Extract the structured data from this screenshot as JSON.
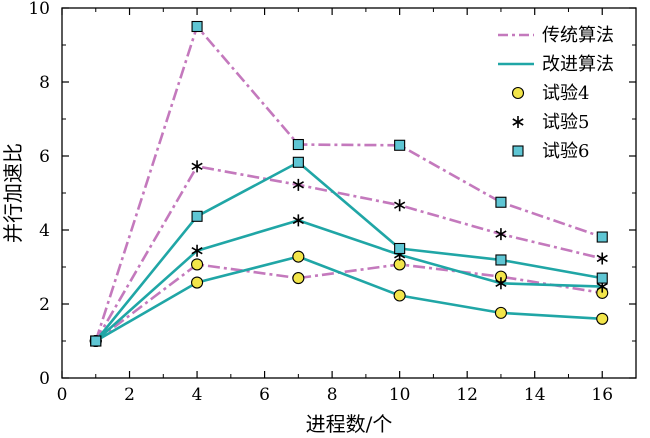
{
  "chart_data": {
    "type": "line",
    "xlabel": "进程数/个",
    "ylabel": "并行加速比",
    "xlim": [
      0,
      17
    ],
    "ylim": [
      0,
      10
    ],
    "xticks": [
      0,
      2,
      4,
      6,
      8,
      10,
      12,
      14,
      16
    ],
    "yticks": [
      0,
      2,
      4,
      6,
      8,
      10
    ],
    "legend_position": "top-right",
    "colors": {
      "traditional": "#c479bd",
      "improved": "#20a6a6",
      "marker_test4": "#f2e54a",
      "marker_test6": "#5fc6d4"
    },
    "x": [
      1,
      4,
      7,
      10,
      13,
      16
    ],
    "series": [
      {
        "name": "试验4",
        "method": "传统算法",
        "values": [
          1,
          3.07,
          2.7,
          3.07,
          2.74,
          2.3
        ],
        "marker": "circle"
      },
      {
        "name": "试验5",
        "method": "传统算法",
        "values": [
          1,
          5.72,
          5.22,
          4.67,
          3.89,
          3.23
        ],
        "marker": "star"
      },
      {
        "name": "试验6",
        "method": "传统算法",
        "values": [
          1,
          9.5,
          6.31,
          6.29,
          4.75,
          3.81
        ],
        "marker": "square"
      },
      {
        "name": "试验4",
        "method": "改进算法",
        "values": [
          1,
          2.58,
          3.28,
          2.23,
          1.76,
          1.6
        ],
        "marker": "circle"
      },
      {
        "name": "试验5",
        "method": "改进算法",
        "values": [
          1,
          3.44,
          4.26,
          3.33,
          2.56,
          2.47
        ],
        "marker": "star"
      },
      {
        "name": "试验6",
        "method": "改进算法",
        "values": [
          1,
          4.37,
          5.83,
          3.5,
          3.19,
          2.7
        ],
        "marker": "square"
      }
    ],
    "legend": {
      "lines": [
        {
          "label": "传统算法",
          "style": "dash-dot"
        },
        {
          "label": "改进算法",
          "style": "solid"
        }
      ],
      "markers": [
        {
          "label": "试验4",
          "marker": "circle"
        },
        {
          "label": "试验5",
          "marker": "star"
        },
        {
          "label": "试验6",
          "marker": "square"
        }
      ]
    }
  }
}
